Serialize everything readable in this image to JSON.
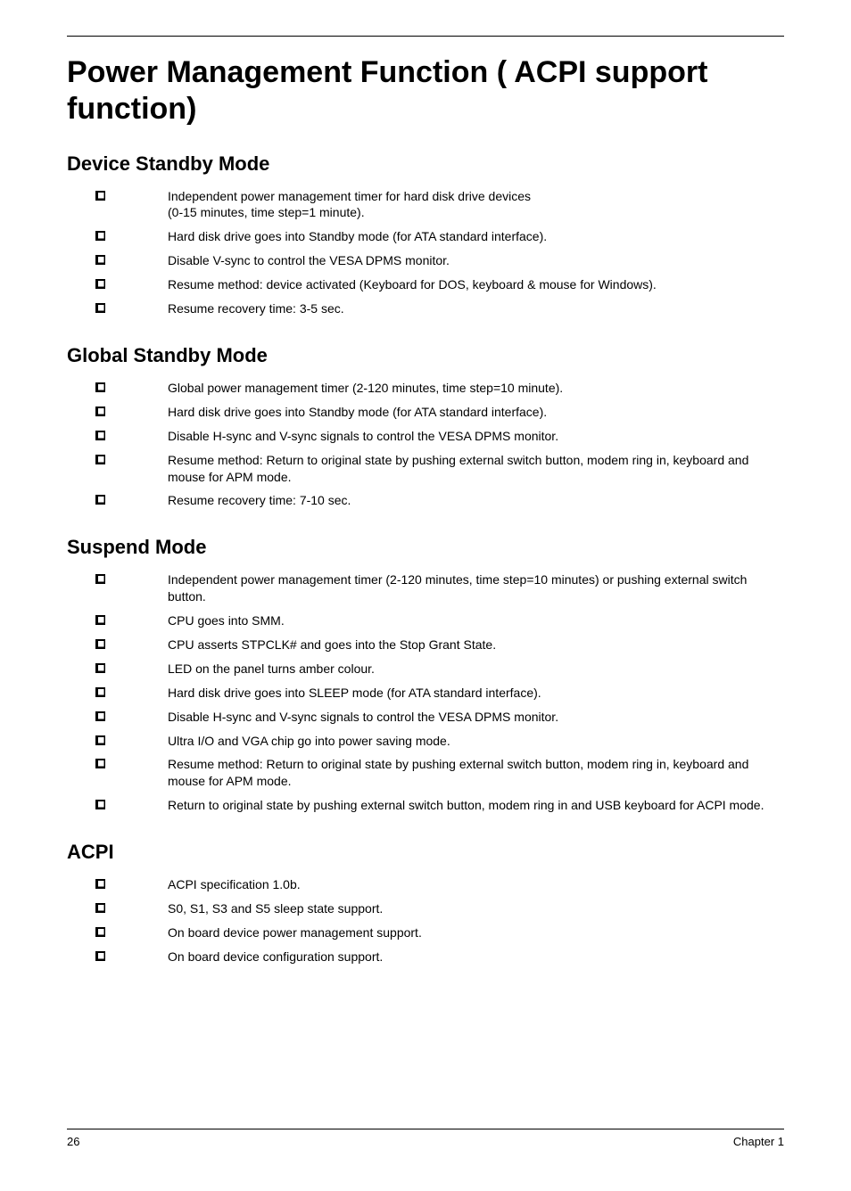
{
  "title": "Power Management Function ( ACPI support function)",
  "sections": [
    {
      "heading": "Device Standby Mode",
      "items": [
        "Independent power management timer for hard disk drive devices\n(0-15 minutes, time step=1 minute).",
        "Hard disk drive goes into Standby mode (for ATA standard interface).",
        "Disable V-sync to control the VESA DPMS monitor.",
        "Resume method: device activated (Keyboard for DOS, keyboard & mouse for Windows).",
        "Resume recovery time: 3-5 sec."
      ]
    },
    {
      "heading": "Global Standby Mode",
      "items": [
        "Global power management timer (2-120 minutes, time step=10 minute).",
        "Hard disk drive goes into Standby mode (for ATA standard interface).",
        "Disable H-sync and V-sync signals to control the VESA DPMS monitor.",
        "Resume method: Return to original state by pushing external switch button, modem ring in, keyboard and mouse for APM mode.",
        "Resume recovery time: 7-10 sec."
      ]
    },
    {
      "heading": "Suspend Mode",
      "items": [
        "Independent power management timer (2-120 minutes, time step=10 minutes) or pushing external switch button.",
        "CPU goes into SMM.",
        "CPU asserts STPCLK# and goes into the Stop Grant State.",
        "LED on the panel turns amber colour.",
        "Hard disk drive goes into SLEEP mode (for ATA standard interface).",
        "Disable H-sync and V-sync signals to control the VESA DPMS monitor.",
        "Ultra I/O and VGA chip go into power saving mode.",
        "Resume method: Return to original state by pushing external switch button, modem ring in, keyboard and mouse for APM mode.",
        "Return to original state by pushing external switch button, modem ring in and USB keyboard for ACPI mode."
      ]
    },
    {
      "heading": "ACPI",
      "items": [
        "ACPI specification 1.0b.",
        "S0, S1, S3 and S5 sleep state support.",
        "On board device power management support.",
        "On board device configuration support."
      ]
    }
  ],
  "footer": {
    "page_number": "26",
    "chapter": "Chapter 1"
  }
}
